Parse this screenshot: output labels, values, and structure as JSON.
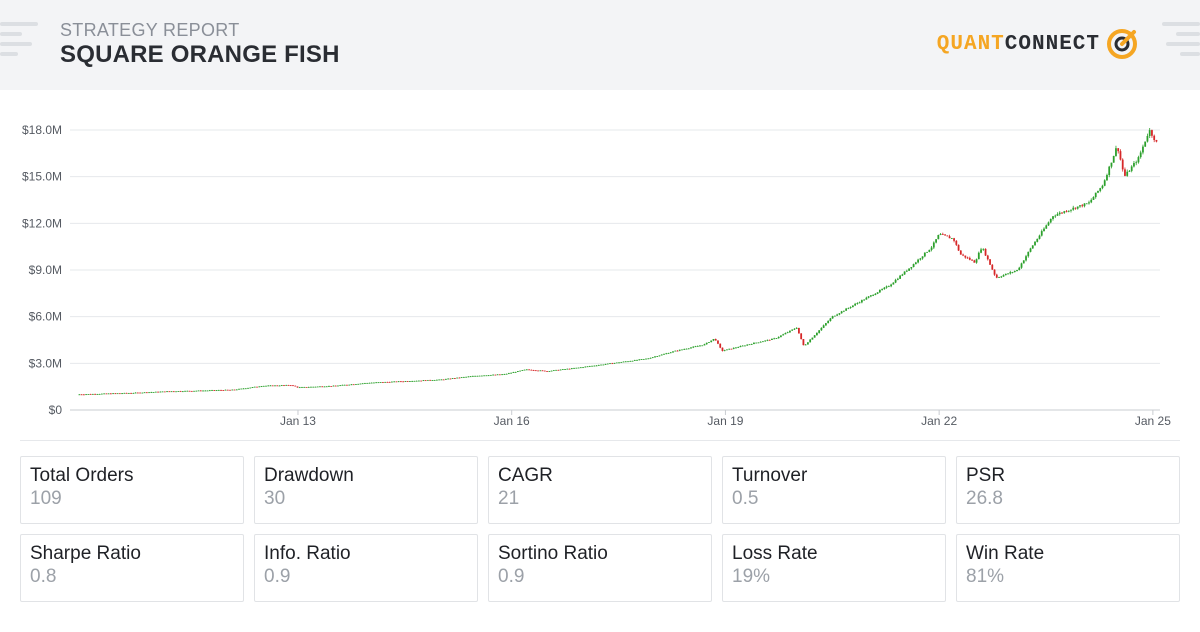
{
  "header": {
    "report_label": "STRATEGY REPORT",
    "strategy_name": "SQUARE ORANGE FISH",
    "logo": {
      "quant": "QUANT",
      "connect": "CONNECT",
      "accent_color": "#f5a623"
    }
  },
  "chart_data": {
    "type": "candlestick",
    "title": "",
    "xlabel": "",
    "ylabel": "",
    "y_ticks": [
      "$0",
      "$3.0M",
      "$6.0M",
      "$9.0M",
      "$12.0M",
      "$15.0M",
      "$18.0M"
    ],
    "ylim": [
      0,
      18.0
    ],
    "x_ticks": [
      "Jan 13",
      "Jan 16",
      "Jan 19",
      "Jan 22",
      "Jan 25"
    ],
    "x_tick_years": [
      2013,
      2016,
      2019,
      2022,
      2025
    ],
    "xlim": [
      2009.8,
      2025.1
    ],
    "grid": true,
    "up_color": "#2ca02c",
    "down_color": "#d62728",
    "series": [
      [
        2009.9,
        1.0
      ],
      [
        2010.3,
        1.05
      ],
      [
        2010.7,
        1.1
      ],
      [
        2011.2,
        1.2
      ],
      [
        2011.7,
        1.25
      ],
      [
        2012.1,
        1.3
      ],
      [
        2012.5,
        1.55
      ],
      [
        2012.9,
        1.6
      ],
      [
        2013.0,
        1.45
      ],
      [
        2013.5,
        1.55
      ],
      [
        2014.0,
        1.75
      ],
      [
        2014.5,
        1.85
      ],
      [
        2015.0,
        1.95
      ],
      [
        2015.5,
        2.2
      ],
      [
        2015.9,
        2.3
      ],
      [
        2016.2,
        2.6
      ],
      [
        2016.5,
        2.5
      ],
      [
        2016.9,
        2.7
      ],
      [
        2017.4,
        3.0
      ],
      [
        2017.9,
        3.3
      ],
      [
        2018.3,
        3.8
      ],
      [
        2018.7,
        4.2
      ],
      [
        2018.85,
        4.6
      ],
      [
        2018.95,
        3.8
      ],
      [
        2019.4,
        4.3
      ],
      [
        2019.7,
        4.6
      ],
      [
        2020.0,
        5.3
      ],
      [
        2020.1,
        4.1
      ],
      [
        2020.5,
        6.0
      ],
      [
        2020.9,
        7.0
      ],
      [
        2021.3,
        8.0
      ],
      [
        2021.6,
        9.2
      ],
      [
        2021.9,
        10.5
      ],
      [
        2022.0,
        11.3
      ],
      [
        2022.2,
        11.0
      ],
      [
        2022.3,
        10.0
      ],
      [
        2022.5,
        9.5
      ],
      [
        2022.6,
        10.5
      ],
      [
        2022.8,
        8.5
      ],
      [
        2023.1,
        9.0
      ],
      [
        2023.3,
        10.5
      ],
      [
        2023.6,
        12.5
      ],
      [
        2023.9,
        13.0
      ],
      [
        2024.1,
        13.3
      ],
      [
        2024.3,
        14.5
      ],
      [
        2024.5,
        17.0
      ],
      [
        2024.6,
        15.0
      ],
      [
        2024.8,
        16.2
      ],
      [
        2024.95,
        18.0
      ],
      [
        2025.05,
        17.2
      ]
    ]
  },
  "stats": [
    {
      "label": "Total Orders",
      "value": "109"
    },
    {
      "label": "Drawdown",
      "value": "30"
    },
    {
      "label": "CAGR",
      "value": "21"
    },
    {
      "label": "Turnover",
      "value": "0.5"
    },
    {
      "label": "PSR",
      "value": "26.8"
    },
    {
      "label": "Sharpe Ratio",
      "value": "0.8"
    },
    {
      "label": "Info. Ratio",
      "value": "0.9"
    },
    {
      "label": "Sortino Ratio",
      "value": "0.9"
    },
    {
      "label": "Loss Rate",
      "value": "19%"
    },
    {
      "label": "Win Rate",
      "value": "81%"
    }
  ]
}
